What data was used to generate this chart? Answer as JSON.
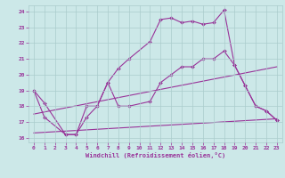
{
  "xlabel": "Windchill (Refroidissement éolien,°C)",
  "bg_color": "#cce8e8",
  "grid_color": "#aacccc",
  "line_color": "#993399",
  "xlim": [
    -0.5,
    23.5
  ],
  "ylim": [
    15.7,
    24.4
  ],
  "yticks": [
    16,
    17,
    18,
    19,
    20,
    21,
    22,
    23,
    24
  ],
  "xticks": [
    0,
    1,
    2,
    3,
    4,
    5,
    6,
    7,
    8,
    9,
    10,
    11,
    12,
    13,
    14,
    15,
    16,
    17,
    18,
    19,
    20,
    21,
    22,
    23
  ],
  "series1_x": [
    0,
    1,
    3,
    4,
    5,
    6,
    7,
    8,
    9,
    11,
    12,
    13,
    14,
    15,
    16,
    17,
    18,
    19,
    20,
    21,
    22,
    23
  ],
  "series1_y": [
    19.0,
    18.2,
    16.2,
    16.2,
    18.0,
    18.0,
    19.5,
    20.4,
    21.0,
    22.1,
    23.5,
    23.6,
    23.3,
    23.4,
    23.2,
    23.3,
    24.1,
    20.6,
    19.3,
    18.0,
    17.7,
    17.1
  ],
  "series2_x": [
    0,
    1,
    3,
    4,
    5,
    6,
    7,
    8,
    9,
    11,
    12,
    13,
    14,
    15,
    16,
    17,
    18,
    19,
    20,
    21,
    22,
    23
  ],
  "series2_y": [
    19.0,
    17.3,
    16.2,
    16.2,
    17.3,
    18.0,
    19.5,
    18.0,
    18.0,
    18.3,
    19.5,
    20.0,
    20.5,
    20.5,
    21.0,
    21.0,
    21.5,
    20.6,
    19.3,
    18.0,
    17.7,
    17.1
  ],
  "series3_x": [
    0,
    23
  ],
  "series3_y": [
    17.5,
    20.5
  ],
  "series4_x": [
    0,
    23
  ],
  "series4_y": [
    16.3,
    17.2
  ]
}
